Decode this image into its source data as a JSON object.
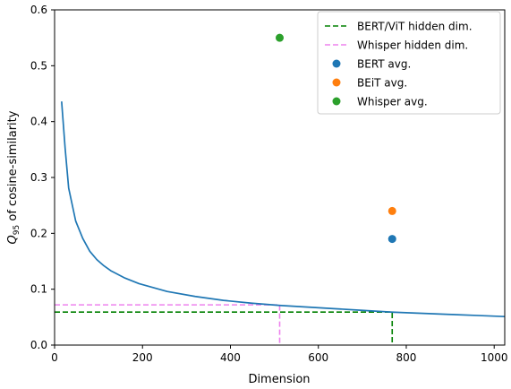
{
  "chart_data": {
    "type": "line",
    "title": "",
    "xlabel": "Dimension",
    "ylabel": {
      "q": "Q",
      "sub": "95",
      "rest": " of cosine-similarity"
    },
    "xlim": [
      0,
      1024
    ],
    "ylim": [
      0.0,
      0.6
    ],
    "grid": false,
    "legend_position": "top-right",
    "x_ticks": [
      0,
      200,
      400,
      600,
      800,
      1000
    ],
    "x_tick_labels": [
      "0",
      "200",
      "400",
      "600",
      "800",
      "1000"
    ],
    "y_ticks": [
      0.0,
      0.1,
      0.2,
      0.3,
      0.4,
      0.5,
      0.6
    ],
    "y_tick_labels": [
      "0.0",
      "0.1",
      "0.2",
      "0.3",
      "0.4",
      "0.5",
      "0.6"
    ],
    "curve": {
      "color": "#1f77b4",
      "x": [
        16,
        24,
        32,
        48,
        64,
        80,
        96,
        112,
        128,
        160,
        192,
        256,
        320,
        384,
        448,
        512,
        576,
        640,
        704,
        768,
        832,
        896,
        960,
        1024
      ],
      "y": [
        0.436,
        0.352,
        0.281,
        0.222,
        0.191,
        0.168,
        0.153,
        0.142,
        0.133,
        0.12,
        0.11,
        0.096,
        0.087,
        0.08,
        0.075,
        0.071,
        0.068,
        0.065,
        0.062,
        0.059,
        0.057,
        0.055,
        0.053,
        0.051
      ]
    },
    "series": [
      {
        "name": "BERT/ViT hidden dim.",
        "kind": "dashed-line",
        "color": "#008000",
        "x": 768,
        "y": 0.059
      },
      {
        "name": "Whisper hidden dim.",
        "kind": "dashed-line",
        "color": "#ee82ee",
        "x": 512,
        "y": 0.072
      },
      {
        "name": "BERT avg.",
        "kind": "point",
        "color": "#1f77b4",
        "x": 768,
        "y": 0.19
      },
      {
        "name": "BEiT avg.",
        "kind": "point",
        "color": "#ff7f0e",
        "x": 768,
        "y": 0.24
      },
      {
        "name": "Whisper avg.",
        "kind": "point",
        "color": "#2ca02c",
        "x": 512,
        "y": 0.55
      }
    ]
  }
}
